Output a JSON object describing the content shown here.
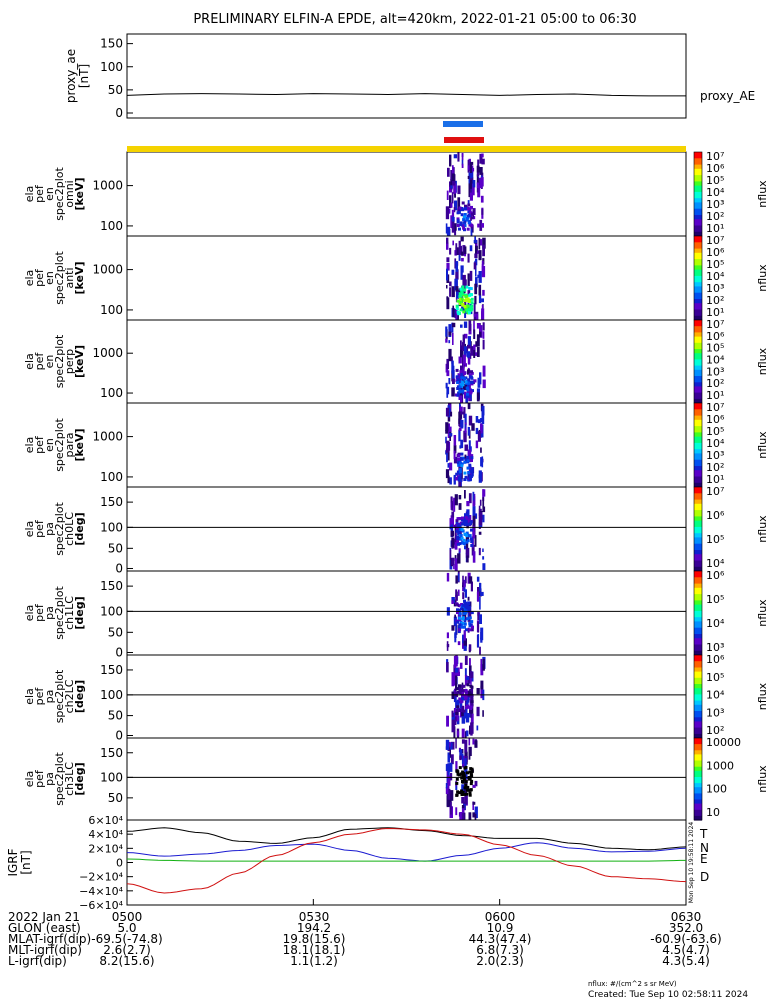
{
  "title": "PRELIMINARY ELFIN-A EPDE, alt=420km, 2022-01-21 05:00 to 06:30",
  "colors": {
    "blue_bar": "#1a6fe8",
    "red_bar": "#e01010",
    "yellow_bar": "#f5d300",
    "grf_T": "#000000",
    "grf_N": "#1a1ad0",
    "grf_E": "#10b010",
    "grf_D": "#d01010"
  },
  "chart_data": [
    {
      "type": "line",
      "name": "proxy_ae",
      "ylabel": [
        "proxy_ae",
        "[nT]"
      ],
      "yticks": [
        "150",
        "100",
        "50",
        "0"
      ],
      "ylim": [
        0,
        160
      ],
      "legend": "proxy_AE",
      "x": [
        "05:00",
        "05:06",
        "05:12",
        "05:18",
        "05:24",
        "05:30",
        "05:36",
        "05:42",
        "05:48",
        "05:54",
        "06:00",
        "06:06",
        "06:12",
        "06:18",
        "06:24",
        "06:30"
      ],
      "values": [
        38,
        41,
        42,
        41,
        40,
        42,
        41,
        40,
        42,
        40,
        38,
        40,
        41,
        38,
        37,
        37
      ]
    },
    {
      "type": "heatmap",
      "name": "spec-omni",
      "ylabel": [
        "ela",
        "pef",
        "en",
        "spec2plot",
        "omni",
        "[keV]"
      ],
      "yticks": [
        "1000",
        "100"
      ],
      "colorbar_ticks": [
        "10⁷",
        "10⁶",
        "10⁵",
        "10⁴",
        "10³",
        "10²",
        "10¹"
      ],
      "colorbar_label": "nflux"
    },
    {
      "type": "heatmap",
      "name": "spec-anti",
      "ylabel": [
        "ela",
        "pef",
        "en",
        "spec2plot",
        "anti",
        "[keV]"
      ],
      "yticks": [
        "1000",
        "100"
      ],
      "colorbar_ticks": [
        "10⁷",
        "10⁶",
        "10⁵",
        "10⁴",
        "10³",
        "10²",
        "10¹"
      ],
      "colorbar_label": "nflux"
    },
    {
      "type": "heatmap",
      "name": "spec-perp",
      "ylabel": [
        "ela",
        "pef",
        "en",
        "spec2plot",
        "perp",
        "[keV]"
      ],
      "yticks": [
        "1000",
        "100"
      ],
      "colorbar_ticks": [
        "10⁷",
        "10⁶",
        "10⁵",
        "10⁴",
        "10³",
        "10²",
        "10¹"
      ],
      "colorbar_label": "nflux"
    },
    {
      "type": "heatmap",
      "name": "spec-para",
      "ylabel": [
        "ela",
        "pef",
        "en",
        "spec2plot",
        "para",
        "[keV]"
      ],
      "yticks": [
        "1000",
        "100"
      ],
      "colorbar_ticks": [
        "10⁷",
        "10⁶",
        "10⁵",
        "10⁴",
        "10³",
        "10²",
        "10¹"
      ],
      "colorbar_label": "nflux"
    },
    {
      "type": "heatmap",
      "name": "pa-ch0",
      "ylabel": [
        "ela",
        "pef",
        "pa",
        "spec2plot",
        "ch0LC",
        "[deg]"
      ],
      "yticks": [
        "150",
        "100",
        "50",
        "0"
      ],
      "colorbar_ticks": [
        "10⁷",
        "10⁶",
        "10⁵",
        "10⁴"
      ],
      "colorbar_label": "nflux"
    },
    {
      "type": "heatmap",
      "name": "pa-ch1",
      "ylabel": [
        "ela",
        "pef",
        "pa",
        "spec2plot",
        "ch1LC",
        "[deg]"
      ],
      "yticks": [
        "150",
        "100",
        "50",
        "0"
      ],
      "colorbar_ticks": [
        "10⁶",
        "10⁵",
        "10⁴",
        "10³"
      ],
      "colorbar_label": "nflux"
    },
    {
      "type": "heatmap",
      "name": "pa-ch2",
      "ylabel": [
        "ela",
        "pef",
        "pa",
        "spec2plot",
        "ch2LC",
        "[deg]"
      ],
      "yticks": [
        "150",
        "100",
        "50",
        "0"
      ],
      "colorbar_ticks": [
        "10⁶",
        "10⁵",
        "10⁴",
        "10³",
        "10²"
      ],
      "colorbar_label": "nflux"
    },
    {
      "type": "heatmap",
      "name": "pa-ch3",
      "ylabel": [
        "ela",
        "pef",
        "pa",
        "spec2plot",
        "ch3LC",
        "[deg]"
      ],
      "yticks": [
        "150",
        "100",
        "50"
      ],
      "colorbar_ticks": [
        "10000",
        "1000",
        "100",
        "10"
      ],
      "colorbar_label": "nflux"
    },
    {
      "type": "line",
      "name": "igrf",
      "ylabel": [
        "IGRF",
        "[nT]"
      ],
      "yticks": [
        "6×10⁴",
        "4×10⁴",
        "2×10⁴",
        "0",
        "−2×10⁴",
        "−4×10⁴",
        "−6×10⁴"
      ],
      "ylim": [
        -60000,
        60000
      ],
      "x": [
        "05:00",
        "05:06",
        "05:12",
        "05:18",
        "05:24",
        "05:30",
        "05:36",
        "05:42",
        "05:48",
        "05:54",
        "06:00",
        "06:06",
        "06:12",
        "06:18",
        "06:24",
        "06:30"
      ],
      "series": [
        {
          "name": "T",
          "values": [
            44000,
            49000,
            42000,
            30000,
            27000,
            35000,
            47000,
            49000,
            45000,
            38000,
            34000,
            34000,
            27000,
            20000,
            18000,
            22000
          ]
        },
        {
          "name": "N",
          "values": [
            14000,
            9000,
            12000,
            17000,
            24000,
            26000,
            17000,
            6000,
            2000,
            10000,
            20000,
            28000,
            20000,
            15000,
            16000,
            20000
          ]
        },
        {
          "name": "E",
          "values": [
            5000,
            3000,
            2000,
            2000,
            2000,
            2000,
            2000,
            2000,
            2000,
            2000,
            2000,
            2000,
            2000,
            2000,
            2000,
            3000
          ]
        },
        {
          "name": "D",
          "values": [
            -30000,
            -43000,
            -37000,
            -15000,
            10000,
            28000,
            40000,
            48000,
            46000,
            40000,
            25000,
            10000,
            -5000,
            -20000,
            -23000,
            -27000
          ]
        }
      ]
    }
  ],
  "side_stamp": "Mon Sep 10 19:58:11 2024",
  "footer": {
    "rows": [
      {
        "label": "2022 Jan 21",
        "values": [
          "0500",
          "0530",
          "0600",
          "0630"
        ]
      },
      {
        "label": "GLON (east)",
        "values": [
          "5.0",
          "194.2",
          "10.9",
          "352.0"
        ]
      },
      {
        "label": "MLAT-igrf(dip)",
        "values": [
          "-69.5(-74.8)",
          "19.8(15.6)",
          "44.3(47.4)",
          "-60.9(-63.6)"
        ]
      },
      {
        "label": "MLT-igrf(dip)",
        "values": [
          "2.6(2.7)",
          "18.1(18.1)",
          "6.8(7.3)",
          "4.5(4.7)"
        ]
      },
      {
        "label": "L-igrf(dip)",
        "values": [
          "8.2(15.6)",
          "1.1(1.2)",
          "2.0(2.3)",
          "4.3(5.4)"
        ]
      }
    ],
    "note": "nflux: #/(cm^2 s sr MeV)",
    "created": "Created: Tue Sep 10 02:58:11 2024"
  }
}
